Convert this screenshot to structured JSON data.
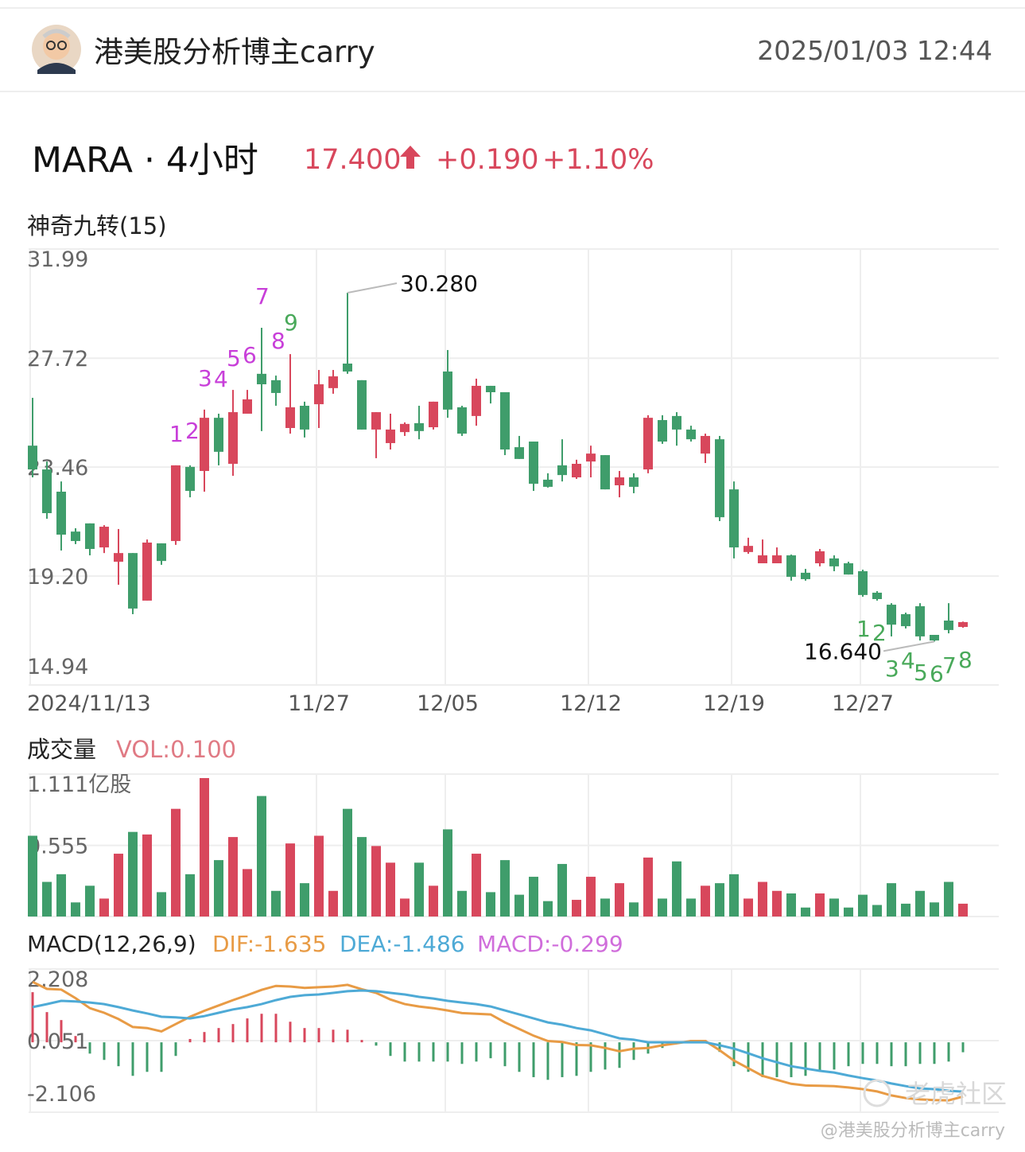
{
  "header": {
    "author": "港美股分析博主carry",
    "datetime": "2025/01/03 12:44"
  },
  "quote": {
    "symbol": "MARA · 4小时",
    "price": "17.400",
    "change": "+0.190",
    "change_pct": "+1.10%"
  },
  "watermark": {
    "logo": "老虎社区",
    "credit": "@港美股分析博主carry"
  },
  "chart_data": [
    {
      "type": "candlestick",
      "title": "神奇九转(15)",
      "up_color": "#d8475c",
      "down_color": "#3f9d6b",
      "categories": [
        "2024/11/13",
        null,
        null,
        null,
        null,
        null,
        null,
        null,
        null,
        null,
        null,
        null,
        null,
        null,
        null,
        null,
        null,
        null,
        null,
        null,
        "11/27",
        null,
        null,
        null,
        null,
        null,
        null,
        null,
        null,
        "12/05",
        null,
        null,
        null,
        null,
        null,
        null,
        null,
        null,
        null,
        "12/12",
        null,
        null,
        null,
        null,
        null,
        null,
        null,
        null,
        null,
        "12/19",
        null,
        null,
        null,
        null,
        null,
        null,
        null,
        null,
        "12/27",
        null,
        null,
        null,
        null,
        null,
        null,
        null
      ],
      "open": [
        24.3,
        23.37,
        22.5,
        20.94,
        21.26,
        20.32,
        19.76,
        20.1,
        18.24,
        20.48,
        20.57,
        23.47,
        23.31,
        25.39,
        23.59,
        25.55,
        27.11,
        26.86,
        24.99,
        25.86,
        25.92,
        26.55,
        27.51,
        26.86,
        24.93,
        24.4,
        24.83,
        25.18,
        25.02,
        27.2,
        25.8,
        25.46,
        26.64,
        26.39,
        24.24,
        24.46,
        22.97,
        23.53,
        23.06,
        23.68,
        23.93,
        22.75,
        23.06,
        23.37,
        25.3,
        25.46,
        24.93,
        23.99,
        24.55,
        22.59,
        20.14,
        19.7,
        19.7,
        20.01,
        19.33,
        19.7,
        19.89,
        19.7,
        19.39,
        18.55,
        18.08,
        17.71,
        18.02,
        16.9,
        17.46,
        17.21
      ],
      "high": [
        26.17,
        23.68,
        22.9,
        21.07,
        21.26,
        21.19,
        21.04,
        20.1,
        20.63,
        20.48,
        23.53,
        23.53,
        25.71,
        25.55,
        26.48,
        26.48,
        28.91,
        27.04,
        27.88,
        26.02,
        27.26,
        27.26,
        30.28,
        26.86,
        25.61,
        25.55,
        25.21,
        25.86,
        26.02,
        28.04,
        25.86,
        26.92,
        26.64,
        26.39,
        24.68,
        24.46,
        23.22,
        24.55,
        23.75,
        24.3,
        23.93,
        23.31,
        23.22,
        25.49,
        25.49,
        25.61,
        25.08,
        24.77,
        24.68,
        22.9,
        20.7,
        20.63,
        20.32,
        20.04,
        19.48,
        20.26,
        20.01,
        19.76,
        19.45,
        18.61,
        18.14,
        17.77,
        18.14,
        16.9,
        18.14,
        17.42
      ],
      "low": [
        23.06,
        21.44,
        20.2,
        20.45,
        20.01,
        20.1,
        18.86,
        17.71,
        18.24,
        19.64,
        20.42,
        22.28,
        22.5,
        23.53,
        23.12,
        25.55,
        24.87,
        25.86,
        24.77,
        24.62,
        24.99,
        26.33,
        27.11,
        24.93,
        23.81,
        24.15,
        24.68,
        24.55,
        24.93,
        25.39,
        24.68,
        25.08,
        25.95,
        23.93,
        23.78,
        22.53,
        22.66,
        22.9,
        23.0,
        23.06,
        22.59,
        22.28,
        22.44,
        23.22,
        24.37,
        24.3,
        24.46,
        23.62,
        21.35,
        19.89,
        20.07,
        19.7,
        19.7,
        19.02,
        19.02,
        19.58,
        19.39,
        19.26,
        18.39,
        18.24,
        16.84,
        17.15,
        16.68,
        16.64,
        16.96,
        17.18
      ],
      "close": [
        23.37,
        21.66,
        20.82,
        20.57,
        20.26,
        21.13,
        20.1,
        17.93,
        20.51,
        19.79,
        23.53,
        22.53,
        25.39,
        24.06,
        25.61,
        26.11,
        26.7,
        26.36,
        25.8,
        24.93,
        26.7,
        27.01,
        27.2,
        24.93,
        25.61,
        24.93,
        25.15,
        24.87,
        26.02,
        25.71,
        24.77,
        26.64,
        26.39,
        24.15,
        23.78,
        22.81,
        22.69,
        23.15,
        23.59,
        23.99,
        22.59,
        23.06,
        22.69,
        25.39,
        24.46,
        24.93,
        24.55,
        24.68,
        21.5,
        20.32,
        20.38,
        20.01,
        20.01,
        19.17,
        19.08,
        20.17,
        19.58,
        19.26,
        18.46,
        18.3,
        17.3,
        17.24,
        16.84,
        16.68,
        17.09,
        17.4
      ],
      "ylim": [
        14.94,
        31.99
      ],
      "yticks": [
        31.99,
        27.72,
        23.46,
        {
          "value": 19.2,
          "label": "19.20"
        },
        14.94
      ],
      "grid": true,
      "annotations": [
        {
          "index": 22,
          "value": 30.28,
          "label": "30.280",
          "side": "high"
        },
        {
          "index": 63,
          "value": 16.64,
          "label": "16.640",
          "side": "low"
        }
      ],
      "td": [
        {
          "color": "#c83fd9",
          "position": "above",
          "at": [
            10,
            11,
            12,
            13,
            14,
            15,
            16,
            17
          ],
          "counts": [
            1,
            2,
            3,
            4,
            5,
            6,
            7,
            8
          ]
        },
        {
          "color": "#49a95a",
          "position": "above",
          "at": [
            18
          ],
          "counts": [
            9
          ]
        },
        {
          "color": "#49a95a",
          "position": "below",
          "at": [
            58,
            59,
            60,
            61,
            62,
            63,
            64,
            65
          ],
          "counts": [
            1,
            2,
            3,
            4,
            5,
            6,
            7,
            8
          ]
        }
      ]
    },
    {
      "type": "volume",
      "title": "成交量",
      "label": "VOL:0.100",
      "label_color": "#e07a84",
      "values": [
        0.63,
        0.27,
        0.33,
        0.11,
        0.24,
        0.14,
        0.49,
        0.66,
        0.64,
        0.19,
        0.84,
        0.33,
        1.08,
        0.44,
        0.62,
        0.37,
        0.94,
        0.2,
        0.57,
        0.26,
        0.63,
        0.2,
        0.84,
        0.62,
        0.55,
        0.42,
        0.14,
        0.42,
        0.24,
        0.68,
        0.2,
        0.49,
        0.19,
        0.44,
        0.17,
        0.31,
        0.12,
        0.41,
        0.13,
        0.31,
        0.14,
        0.26,
        0.11,
        0.46,
        0.14,
        0.43,
        0.14,
        0.24,
        0.26,
        0.33,
        0.14,
        0.27,
        0.2,
        0.18,
        0.07,
        0.18,
        0.14,
        0.07,
        0.17,
        0.09,
        0.26,
        0.1,
        0.2,
        0.11,
        0.27,
        0.1
      ],
      "ylim": [
        0,
        1.111
      ],
      "yticks": [
        {
          "value": 1.111,
          "label": "1.111亿股"
        },
        0.555
      ],
      "grid": true
    },
    {
      "type": "macd",
      "title": "MACD(12,26,9)",
      "series": [
        {
          "label": "DIF:-1.635",
          "color": "#e89b45",
          "values": [
            1.82,
            1.61,
            1.59,
            1.33,
            1.03,
            0.89,
            0.7,
            0.46,
            0.43,
            0.33,
            0.55,
            0.77,
            0.95,
            1.11,
            1.27,
            1.42,
            1.58,
            1.7,
            1.68,
            1.64,
            1.66,
            1.68,
            1.73,
            1.6,
            1.49,
            1.29,
            1.15,
            1.08,
            1.03,
            0.96,
            0.88,
            0.86,
            0.84,
            0.6,
            0.4,
            0.2,
            0.04,
            0.01,
            -0.08,
            -0.09,
            -0.17,
            -0.27,
            -0.19,
            -0.17,
            -0.09,
            -0.03,
            0.04,
            0.04,
            -0.24,
            -0.55,
            -0.78,
            -1.01,
            -1.13,
            -1.25,
            -1.3,
            -1.31,
            -1.32,
            -1.36,
            -1.41,
            -1.48,
            -1.6,
            -1.68,
            -1.72,
            -1.74,
            -1.75,
            -1.635
          ]
        },
        {
          "label": "DEA:-1.486",
          "color": "#4eaad6",
          "values": [
            1.06,
            1.15,
            1.25,
            1.23,
            1.2,
            1.15,
            1.06,
            0.96,
            0.87,
            0.77,
            0.75,
            0.72,
            0.79,
            0.89,
            0.99,
            1.06,
            1.15,
            1.27,
            1.37,
            1.42,
            1.44,
            1.49,
            1.54,
            1.56,
            1.54,
            1.49,
            1.44,
            1.37,
            1.32,
            1.25,
            1.2,
            1.15,
            1.08,
            0.96,
            0.84,
            0.72,
            0.6,
            0.53,
            0.43,
            0.36,
            0.24,
            0.12,
            0.08,
            0.0,
            0.0,
            0.0,
            0.0,
            0.0,
            -0.09,
            -0.19,
            -0.33,
            -0.48,
            -0.6,
            -0.72,
            -0.79,
            -0.86,
            -0.91,
            -1.0,
            -1.08,
            -1.15,
            -1.24,
            -1.32,
            -1.39,
            -1.41,
            -1.46,
            -1.486
          ]
        }
      ],
      "histogram": {
        "label": "MACD:-0.299",
        "color": "#d06ddb",
        "values": [
          1.51,
          0.91,
          0.67,
          0.19,
          -0.34,
          -0.53,
          -0.72,
          -1.01,
          -0.89,
          -0.89,
          -0.41,
          0.1,
          0.31,
          0.43,
          0.55,
          0.72,
          0.86,
          0.86,
          0.62,
          0.43,
          0.43,
          0.38,
          0.38,
          0.07,
          -0.1,
          -0.41,
          -0.58,
          -0.58,
          -0.58,
          -0.58,
          -0.65,
          -0.58,
          -0.48,
          -0.72,
          -0.89,
          -1.05,
          -1.13,
          -1.05,
          -1.01,
          -0.89,
          -0.82,
          -0.77,
          -0.53,
          -0.34,
          -0.17,
          -0.05,
          0.07,
          0.07,
          -0.29,
          -0.72,
          -0.89,
          -1.05,
          -1.05,
          -1.05,
          -1.01,
          -0.89,
          -0.82,
          -0.72,
          -0.65,
          -0.65,
          -0.72,
          -0.72,
          -0.65,
          -0.65,
          -0.58,
          -0.299
        ]
      },
      "ylim": [
        -2.106,
        2.208
      ],
      "yticks": [
        2.208,
        0.051,
        -2.106
      ],
      "grid": true
    }
  ]
}
